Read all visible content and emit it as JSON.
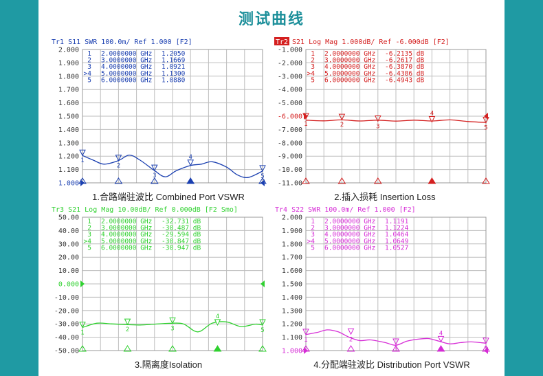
{
  "page": {
    "title": "测试曲线"
  },
  "chart_data": [
    {
      "id": "c1",
      "type": "line",
      "header": "Tr1 S11 SWR 100.0m/ Ref 1.000 [F2]",
      "caption": "1.合路端驻波比 Combined Port VSWR",
      "color": "#1a3fb0",
      "x": [
        1.0,
        1.3,
        1.6,
        2.0,
        2.3,
        2.6,
        3.0,
        3.3,
        3.6,
        4.0,
        4.3,
        4.6,
        5.0,
        5.3,
        5.6,
        6.0
      ],
      "y": [
        1.205,
        1.17,
        1.14,
        1.167,
        1.208,
        1.17,
        1.092,
        1.045,
        1.09,
        1.13,
        1.14,
        1.158,
        1.118,
        1.06,
        1.04,
        1.088
      ],
      "xlim": [
        1,
        6
      ],
      "ylim": [
        1.0,
        2.0
      ],
      "yticks": [
        "2.000",
        "1.900",
        "1.800",
        "1.700",
        "1.600",
        "1.500",
        "1.400",
        "1.300",
        "1.200",
        "1.100",
        "1.000"
      ],
      "ref_index": 10,
      "markers": [
        {
          "n": "1",
          "x": 1,
          "y": 1.205,
          "label_x": 1,
          "label_y": 1.205,
          "active": false
        },
        {
          "n": "2",
          "x": 2,
          "y": 1.1669,
          "label_x": 2,
          "label_y": 1.1669,
          "active": false
        },
        {
          "n": "3",
          "x": 3,
          "y": 1.0921,
          "label_x": 3,
          "label_y": 1.0921,
          "active": false
        },
        {
          "n": "4",
          "x": 4,
          "y": 1.13,
          "label_x": 4,
          "label_y": 1.13,
          "active": true
        },
        {
          "n": "5",
          "x": 6,
          "y": 1.088,
          "label_x": 6,
          "label_y": 1.088,
          "active": false
        }
      ],
      "table": [
        {
          "prefix": "1",
          "freq": "2.0000000 GHz",
          "val": "1.2050"
        },
        {
          "prefix": "2",
          "freq": "3.0000000 GHz",
          "val": "1.1669"
        },
        {
          "prefix": "3",
          "freq": "4.0000000 GHz",
          "val": "1.0921"
        },
        {
          "prefix": ">4",
          "freq": "5.0000000 GHz",
          "val": "1.1300"
        },
        {
          "prefix": "5",
          "freq": "6.0000000 GHz",
          "val": "1.0880"
        }
      ]
    },
    {
      "id": "c2",
      "type": "line",
      "header_badge": "Tr2",
      "header": "S21 Log Mag 1.000dB/ Ref -6.000dB [F2]",
      "caption": "2.插入损耗 Insertion Loss",
      "color": "#d42020",
      "x": [
        1.0,
        1.5,
        2.0,
        2.5,
        3.0,
        3.5,
        4.0,
        4.5,
        5.0,
        5.5,
        6.0
      ],
      "y": [
        -6.3,
        -6.35,
        -6.28,
        -6.36,
        -6.3,
        -6.37,
        -6.3,
        -6.36,
        -6.28,
        -6.4,
        -6.47
      ],
      "xlim": [
        1,
        6
      ],
      "ylim": [
        -11.0,
        -1.0
      ],
      "yticks": [
        "-1.000",
        "-2.000",
        "-3.000",
        "-4.000",
        "-5.000",
        "-6.000",
        "-7.000",
        "-8.000",
        "-9.000",
        "-10.00",
        "-11.00"
      ],
      "ref_index": 5,
      "markers": [
        {
          "n": "1",
          "x": 1,
          "y": -6.2135,
          "active": false
        },
        {
          "n": "2",
          "x": 2,
          "y": -6.2617,
          "active": false
        },
        {
          "n": "3",
          "x": 3,
          "y": -6.387,
          "active": false
        },
        {
          "n": "4",
          "x": 4.5,
          "y": -6.4386,
          "active": true
        },
        {
          "n": "5",
          "x": 6,
          "y": -6.4943,
          "active": false
        }
      ],
      "table": [
        {
          "prefix": "1",
          "freq": "2.0000000 GHz",
          "val": "-6.2135 dB"
        },
        {
          "prefix": "2",
          "freq": "3.0000000 GHz",
          "val": "-6.2617 dB"
        },
        {
          "prefix": "3",
          "freq": "4.0000000 GHz",
          "val": "-6.3870 dB"
        },
        {
          "prefix": ">4",
          "freq": "5.0000000 GHz",
          "val": "-6.4386 dB"
        },
        {
          "prefix": "5",
          "freq": "6.0000000 GHz",
          "val": "-6.4943 dB"
        }
      ]
    },
    {
      "id": "c3",
      "type": "line",
      "header": "Tr3 S21 Log Mag 10.00dB/ Ref 0.000dB [F2 Smo]",
      "caption": "3.隔离度Isolation",
      "color": "#2fd12f",
      "x": [
        1.0,
        1.4,
        1.8,
        2.2,
        2.6,
        3.0,
        3.4,
        3.8,
        4.2,
        4.6,
        5.0,
        5.4,
        5.8,
        6.0
      ],
      "y": [
        -32.7,
        -29.5,
        -30.0,
        -30.5,
        -30.8,
        -30.2,
        -29.6,
        -30.0,
        -36.0,
        -29.5,
        -28.5,
        -32.0,
        -30.2,
        -30.9
      ],
      "xlim": [
        1,
        6
      ],
      "ylim": [
        -50,
        50
      ],
      "yticks": [
        "50.00",
        "40.00",
        "30.00",
        "20.00",
        "10.00",
        "0.000",
        "-10.00",
        "-20.00",
        "-30.00",
        "-40.00",
        "-50.00"
      ],
      "ref_index": 5,
      "markers": [
        {
          "n": "1",
          "x": 1,
          "y": -32.731,
          "active": false
        },
        {
          "n": "2",
          "x": 2.25,
          "y": -30.487,
          "active": false
        },
        {
          "n": "3",
          "x": 3.5,
          "y": -29.594,
          "active": false
        },
        {
          "n": "4",
          "x": 4.75,
          "y": -30.847,
          "active": true
        },
        {
          "n": "5",
          "x": 6,
          "y": -30.947,
          "active": false
        }
      ],
      "table": [
        {
          "prefix": "1",
          "freq": "2.0000000 GHz",
          "val": "-32.731 dB"
        },
        {
          "prefix": "2",
          "freq": "3.0000000 GHz",
          "val": "-30.487 dB"
        },
        {
          "prefix": "3",
          "freq": "4.0000000 GHz",
          "val": "-29.594 dB"
        },
        {
          "prefix": ">4",
          "freq": "5.0000000 GHz",
          "val": "-30.847 dB"
        },
        {
          "prefix": "5",
          "freq": "6.0000000 GHz",
          "val": "-30.947 dB"
        }
      ]
    },
    {
      "id": "c4",
      "type": "line",
      "header": "Tr4 S22 SWR 100.0m/ Ref 1.000 [F2]",
      "caption": "4.分配端驻波比 Distribution Port VSWR",
      "color": "#d62cd6",
      "x": [
        1.0,
        1.3,
        1.6,
        1.9,
        2.2,
        2.5,
        2.8,
        3.2,
        3.5,
        3.8,
        4.1,
        4.4,
        4.7,
        5.0,
        5.3,
        5.6,
        6.0
      ],
      "y": [
        1.12,
        1.135,
        1.155,
        1.14,
        1.1,
        1.075,
        1.08,
        1.06,
        1.04,
        1.07,
        1.085,
        1.09,
        1.07,
        1.05,
        1.06,
        1.065,
        1.055
      ],
      "xlim": [
        1,
        6
      ],
      "ylim": [
        1.0,
        2.0
      ],
      "yticks": [
        "2.000",
        "1.900",
        "1.800",
        "1.700",
        "1.600",
        "1.500",
        "1.400",
        "1.300",
        "1.200",
        "1.100",
        "1.000"
      ],
      "ref_index": 10,
      "markers": [
        {
          "n": "1",
          "x": 1,
          "y": 1.1191,
          "active": false
        },
        {
          "n": "2",
          "x": 2.25,
          "y": 1.1224,
          "active": false
        },
        {
          "n": "3",
          "x": 3.5,
          "y": 1.0464,
          "active": false
        },
        {
          "n": "4",
          "x": 4.75,
          "y": 1.0649,
          "active": true
        },
        {
          "n": "5",
          "x": 6,
          "y": 1.0527,
          "active": false
        }
      ],
      "table": [
        {
          "prefix": "1",
          "freq": "2.0000000 GHz",
          "val": "1.1191"
        },
        {
          "prefix": "2",
          "freq": "3.0000000 GHz",
          "val": "1.1224"
        },
        {
          "prefix": "3",
          "freq": "4.0000000 GHz",
          "val": "1.0464"
        },
        {
          "prefix": ">4",
          "freq": "5.0000000 GHz",
          "val": "1.0649"
        },
        {
          "prefix": "5",
          "freq": "6.0000000 GHz",
          "val": "1.0527"
        }
      ]
    }
  ]
}
